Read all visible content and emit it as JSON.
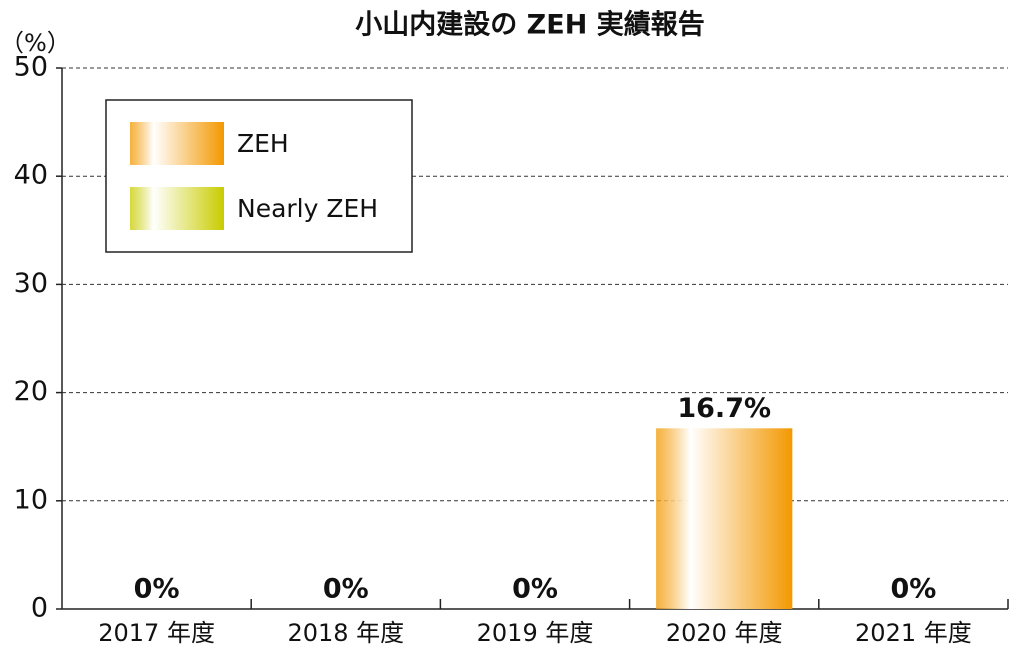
{
  "chart_data": {
    "type": "bar",
    "title": "小山内建設の ZEH 実績報告",
    "y_unit": "（%）",
    "categories": [
      "2017 年度",
      "2018 年度",
      "2019 年度",
      "2020 年度",
      "2021 年度"
    ],
    "series": [
      {
        "name": "ZEH",
        "color": "#f39800",
        "values": [
          0,
          0,
          0,
          16.7,
          0
        ],
        "value_labels": [
          "0%",
          "0%",
          "0%",
          "16.7%",
          "0%"
        ]
      },
      {
        "name": "Nearly ZEH",
        "color": "#c9cc00",
        "values": [
          0,
          0,
          0,
          0,
          0
        ]
      }
    ],
    "ylim": [
      0,
      50
    ],
    "yticks": [
      0,
      10,
      20,
      30,
      40,
      50
    ],
    "grid": true,
    "stacked": true,
    "legend": "upper left"
  }
}
